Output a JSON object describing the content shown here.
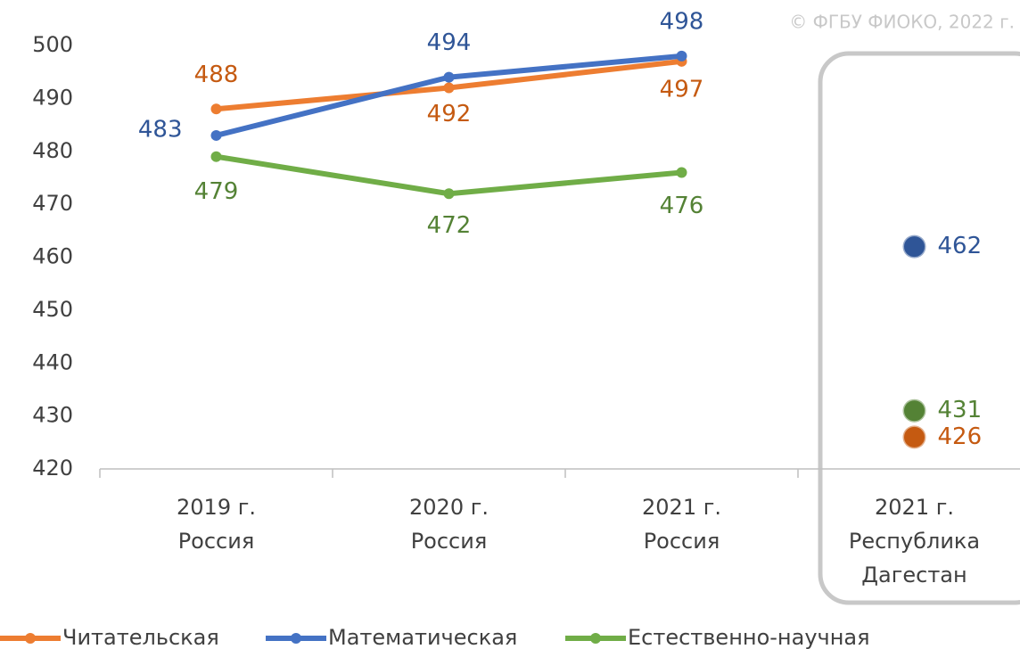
{
  "chart_data": {
    "type": "line",
    "source": "© ФГБУ ФИОКО, 2022 г.",
    "categories": [
      [
        "2019 г.",
        "Россия"
      ],
      [
        "2020 г.",
        "Россия"
      ],
      [
        "2021 г.",
        "Россия"
      ],
      [
        "2021 г.",
        "Республика",
        "Дагестан"
      ]
    ],
    "highlight_category": 3,
    "series": [
      {
        "name": "Читательская",
        "color": "#ed7d31",
        "label_color": "#c55a11",
        "values": [
          488,
          492,
          497,
          426
        ]
      },
      {
        "name": "Математическая",
        "color": "#4472c4",
        "label_color": "#2f5597",
        "values": [
          483,
          494,
          498,
          462
        ]
      },
      {
        "name": "Естественно-научная",
        "color": "#70ad47",
        "label_color": "#548235",
        "values": [
          479,
          472,
          476,
          431
        ]
      }
    ],
    "ylim": [
      420,
      500
    ],
    "yticks": [
      420,
      430,
      440,
      450,
      460,
      470,
      480,
      490,
      500
    ],
    "grid": false,
    "legend": "bottom"
  }
}
